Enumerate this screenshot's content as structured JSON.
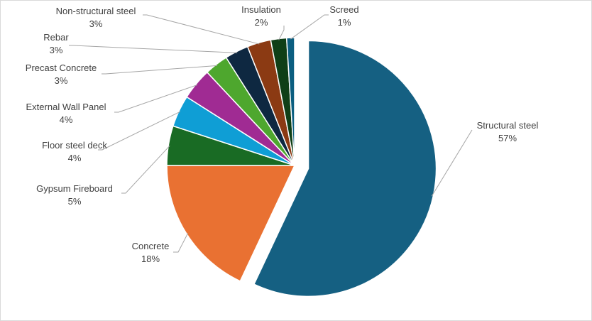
{
  "chart_data": {
    "type": "pie",
    "title": "",
    "exploded": "Structural steel",
    "slices": [
      {
        "name": "Structural steel",
        "value": 57,
        "label": "57%",
        "color": "#156082"
      },
      {
        "name": "Concrete",
        "value": 18,
        "label": "18%",
        "color": "#E97132"
      },
      {
        "name": "Gypsum Fireboard",
        "value": 5,
        "label": "5%",
        "color": "#196B24"
      },
      {
        "name": "Floor steel deck",
        "value": 4,
        "label": "4%",
        "color": "#0F9ED5"
      },
      {
        "name": "External Wall Panel",
        "value": 4,
        "label": "4%",
        "color": "#A02B93"
      },
      {
        "name": "Precast Concrete",
        "value": 3,
        "label": "3%",
        "color": "#4EA72E"
      },
      {
        "name": "Rebar",
        "value": 3,
        "label": "3%",
        "color": "#0E2841"
      },
      {
        "name": "Non-structural steel",
        "value": 3,
        "label": "3%",
        "color": "#8B3A13"
      },
      {
        "name": "Insulation",
        "value": 2,
        "label": "2%",
        "color": "#0F3F17"
      },
      {
        "name": "Screed",
        "value": 1,
        "label": "1%",
        "color": "#0B5E80"
      }
    ]
  }
}
